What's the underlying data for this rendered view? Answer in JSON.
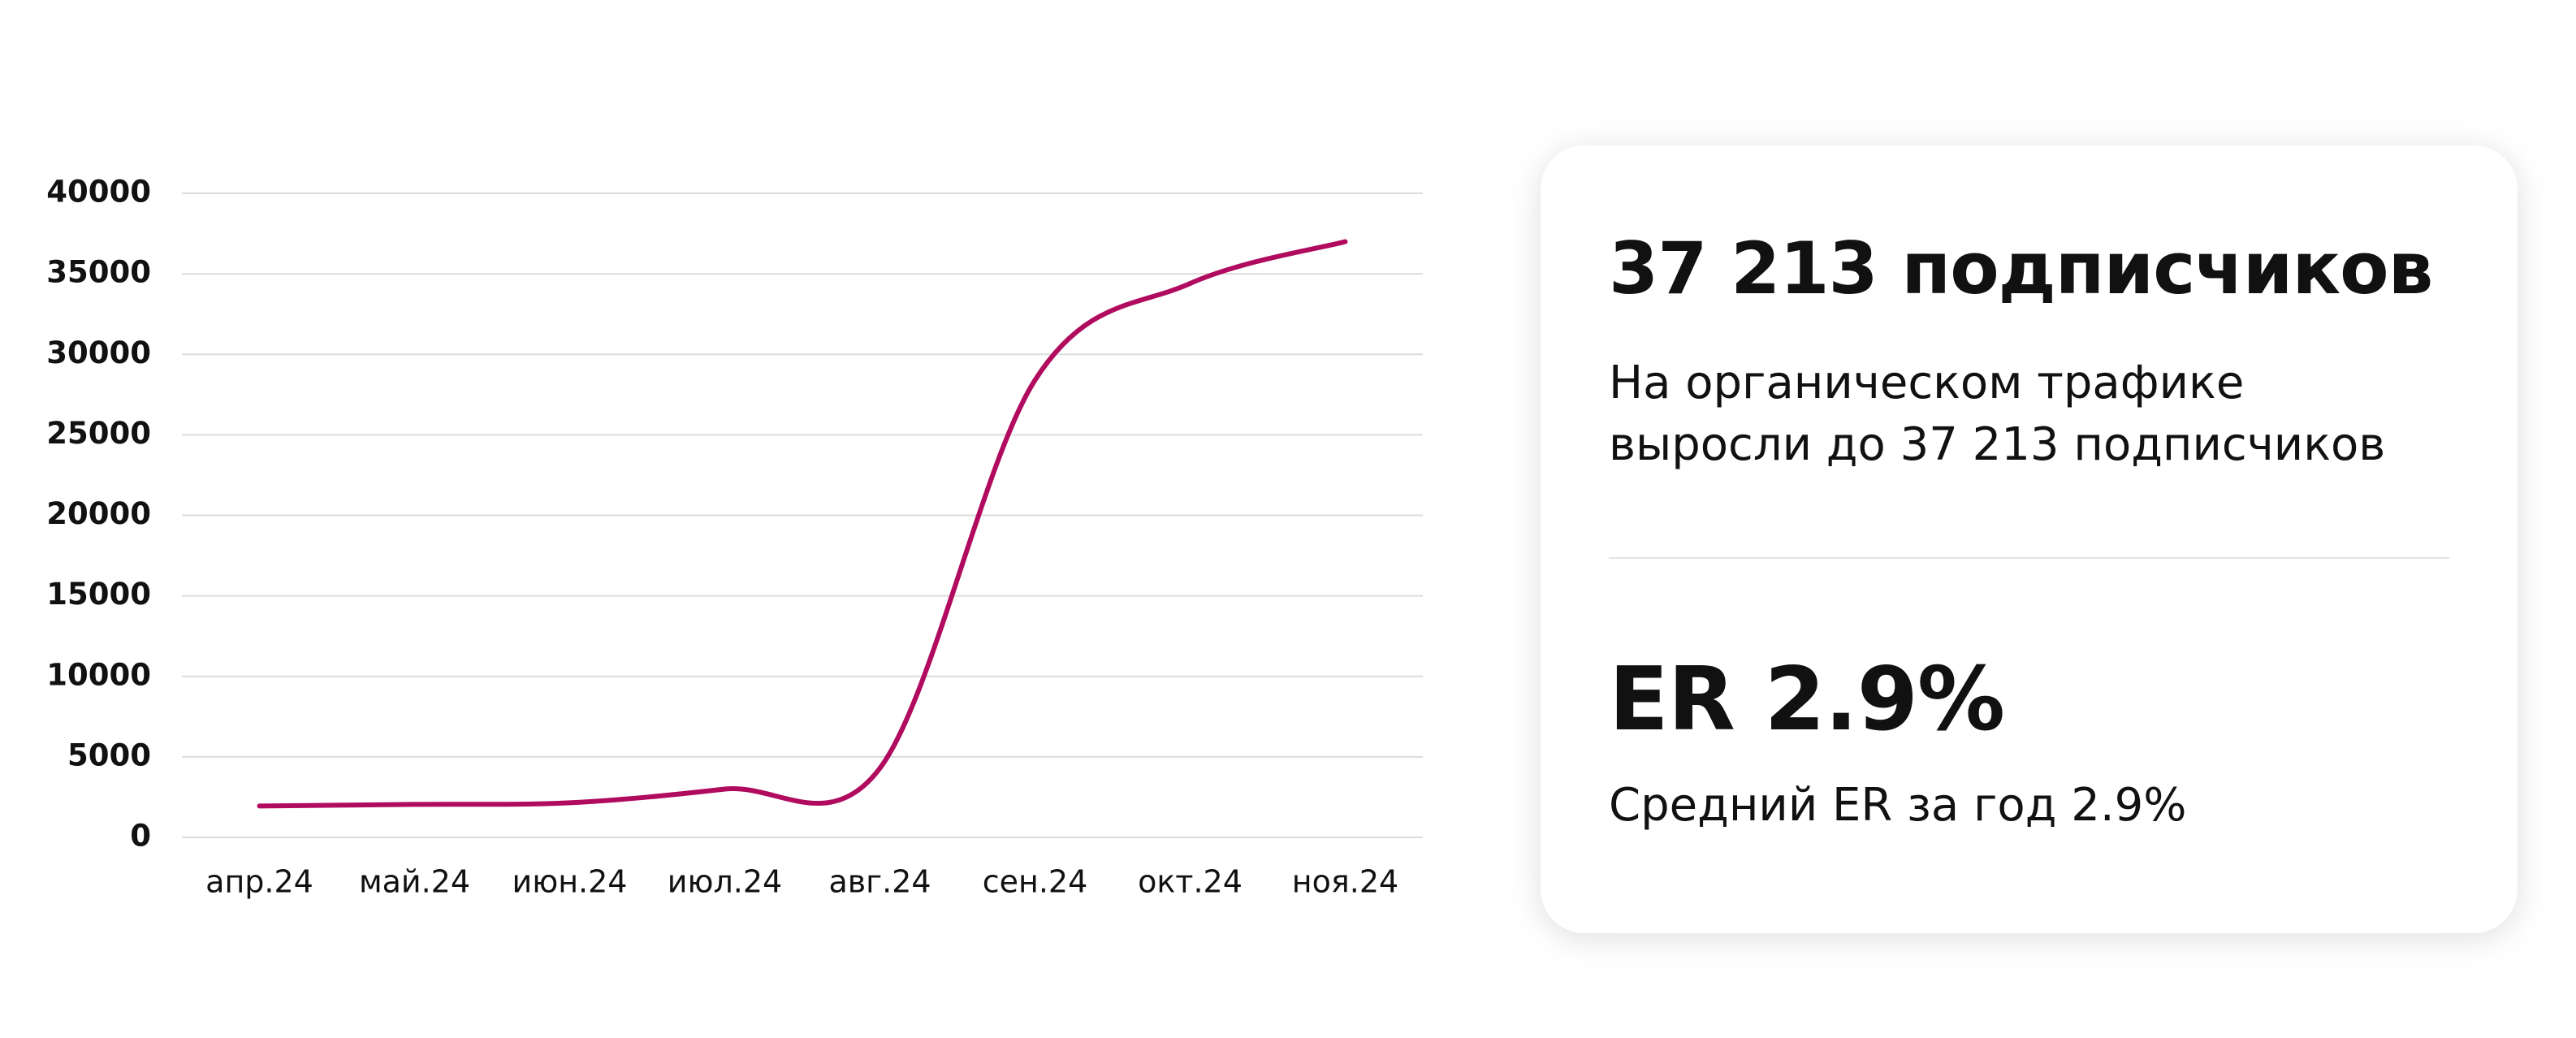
{
  "chart_data": {
    "type": "line",
    "categories": [
      "апр.24",
      "май.24",
      "июн.24",
      "июл.24",
      "авг.24",
      "сен.24",
      "окт.24",
      "ноя.24"
    ],
    "values": [
      1950,
      2050,
      2150,
      3000,
      4300,
      28400,
      34400,
      37000
    ],
    "color": "#b00b5e",
    "ylim": [
      0,
      40000
    ],
    "yticks": [
      0,
      5000,
      10000,
      15000,
      20000,
      25000,
      30000,
      35000,
      40000
    ],
    "grid": true
  },
  "card": {
    "headline": "37 213 подписчиков",
    "description_lines": [
      "На органическом трафике",
      "выросли до 37 213 подписчиков"
    ],
    "metric": "ER 2.9%",
    "metric_caption": "Средний ER за год 2.9%"
  }
}
